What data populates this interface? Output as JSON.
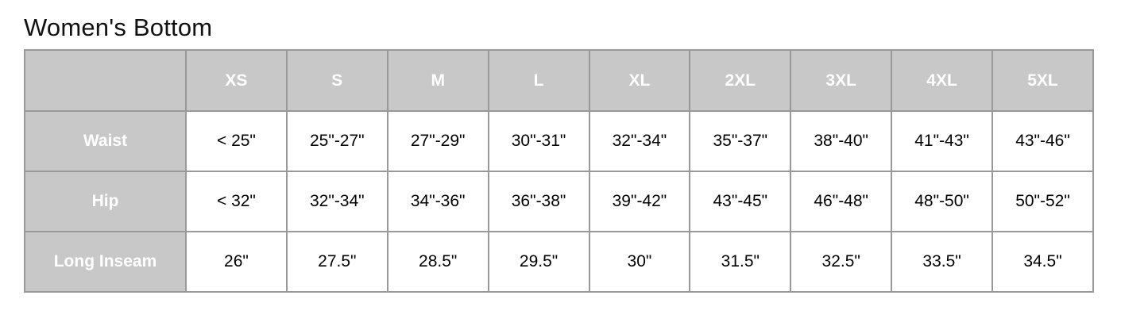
{
  "page": {
    "title": "Women's Bottom"
  },
  "table": {
    "corner_label": "",
    "columns": [
      "XS",
      "S",
      "M",
      "L",
      "XL",
      "2XL",
      "3XL",
      "4XL",
      "5XL"
    ],
    "rows": [
      {
        "label": "Waist",
        "values": [
          "< 25\"",
          "25\"-27\"",
          "27\"-29\"",
          "30\"-31\"",
          "32\"-34\"",
          "35\"-37\"",
          "38\"-40\"",
          "41\"-43\"",
          "43\"-46\""
        ]
      },
      {
        "label": "Hip",
        "values": [
          "< 32\"",
          "32\"-34\"",
          "34\"-36\"",
          "36\"-38\"",
          "39\"-42\"",
          "43\"-45\"",
          "46\"-48\"",
          "48\"-50\"",
          "50\"-52\""
        ]
      },
      {
        "label": "Long Inseam",
        "values": [
          "26\"",
          "27.5\"",
          "28.5\"",
          "29.5\"",
          "30\"",
          "31.5\"",
          "32.5\"",
          "33.5\"",
          "34.5\""
        ]
      }
    ],
    "colors": {
      "header_bg": "#c8c8c8",
      "header_text": "#ffffff",
      "grid_border": "#999999",
      "outer_border": "#8a8a8a",
      "cell_text": "#000000"
    }
  }
}
